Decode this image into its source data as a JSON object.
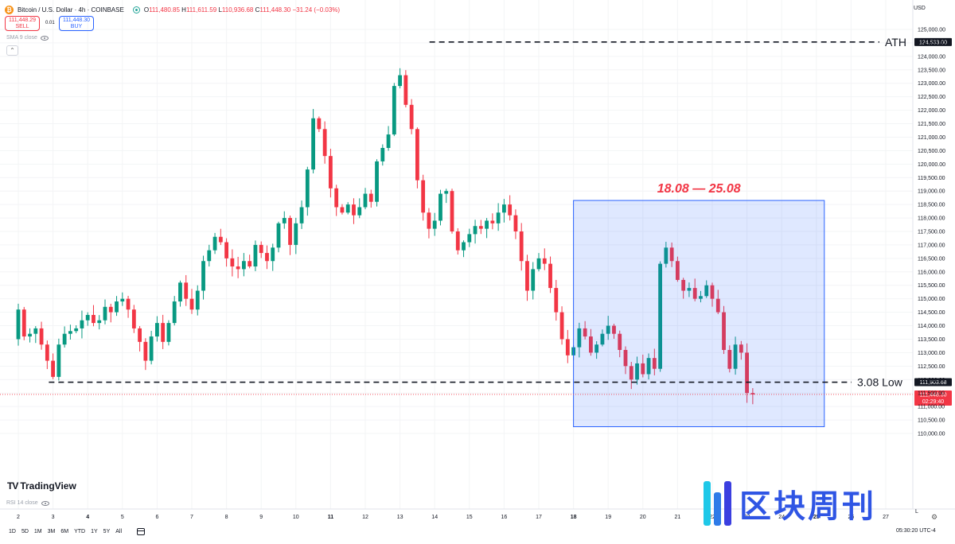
{
  "header": {
    "symbol": "Bitcoin / U.S. Dollar · 4h · COINBASE",
    "open_label": "O",
    "open": "111,480.85",
    "high_label": "H",
    "high": "111,611.59",
    "low_label": "L",
    "low": "110,936.68",
    "close_label": "C",
    "close": "111,448.30",
    "change": "−31.24 (−0.03%)"
  },
  "trade": {
    "sell_price": "111,448.29",
    "sell_label": "SELL",
    "spread": "0.01",
    "buy_price": "111,448.30",
    "buy_label": "BUY"
  },
  "indicators": {
    "sma": "SMA 9 close",
    "rsi": "RSI 14 close"
  },
  "currency": "USD",
  "brand": {
    "name": "TradingView",
    "mark": "TV",
    "watermark": "区块周刊"
  },
  "timeframes": [
    "1D",
    "5D",
    "1M",
    "3M",
    "6M",
    "YTD",
    "1Y",
    "5Y",
    "All"
  ],
  "clock": "05:30:20 UTC-4",
  "scale_toggle": "L",
  "colors": {
    "up": "#089981",
    "down": "#f23645",
    "highlight": "#2962ff",
    "annotation": "#f23645"
  },
  "chart_data": {
    "type": "candlestick",
    "timeframe": "4h",
    "ylim": [
      109000,
      125500
    ],
    "y_ticks": [
      110000,
      110500,
      111000,
      111500,
      112000,
      112500,
      113000,
      113500,
      114000,
      114500,
      115000,
      115500,
      116000,
      116500,
      117000,
      117500,
      118000,
      118500,
      119000,
      119500,
      120000,
      120500,
      121000,
      121500,
      122000,
      122500,
      123000,
      123500,
      124000,
      124500,
      125000
    ],
    "x_labels": [
      {
        "label": "2",
        "day": 2,
        "bold": false
      },
      {
        "label": "3",
        "day": 3,
        "bold": false
      },
      {
        "label": "4",
        "day": 4,
        "bold": true
      },
      {
        "label": "5",
        "day": 5,
        "bold": false
      },
      {
        "label": "6",
        "day": 6,
        "bold": false
      },
      {
        "label": "7",
        "day": 7,
        "bold": false
      },
      {
        "label": "8",
        "day": 8,
        "bold": false
      },
      {
        "label": "9",
        "day": 9,
        "bold": false
      },
      {
        "label": "10",
        "day": 10,
        "bold": false
      },
      {
        "label": "11",
        "day": 11,
        "bold": true
      },
      {
        "label": "12",
        "day": 12,
        "bold": false
      },
      {
        "label": "13",
        "day": 13,
        "bold": false
      },
      {
        "label": "14",
        "day": 14,
        "bold": false
      },
      {
        "label": "15",
        "day": 15,
        "bold": false
      },
      {
        "label": "16",
        "day": 16,
        "bold": false
      },
      {
        "label": "17",
        "day": 17,
        "bold": false
      },
      {
        "label": "18",
        "day": 18,
        "bold": true
      },
      {
        "label": "19",
        "day": 19,
        "bold": false
      },
      {
        "label": "20",
        "day": 20,
        "bold": false
      },
      {
        "label": "21",
        "day": 21,
        "bold": false
      },
      {
        "label": "22",
        "day": 22,
        "bold": false
      },
      {
        "label": "23",
        "day": 23,
        "bold": false
      },
      {
        "label": "24",
        "day": 24,
        "bold": false
      },
      {
        "label": "25",
        "day": 25,
        "bold": true
      },
      {
        "label": "26",
        "day": 26,
        "bold": false
      },
      {
        "label": "27",
        "day": 27,
        "bold": false
      }
    ],
    "closes": [
      114600,
      113600,
      113700,
      113900,
      113300,
      112700,
      112100,
      113300,
      113700,
      113800,
      113900,
      114200,
      114400,
      114100,
      114200,
      114700,
      114500,
      114900,
      115000,
      114600,
      113900,
      113400,
      112700,
      113600,
      114100,
      113400,
      114100,
      114900,
      115600,
      115000,
      114600,
      115300,
      116400,
      116800,
      117300,
      117100,
      116500,
      116200,
      116100,
      116400,
      116200,
      117000,
      116700,
      116400,
      116900,
      117800,
      118000,
      117000,
      117800,
      118400,
      119800,
      121700,
      121300,
      120300,
      119100,
      118400,
      118200,
      118500,
      118100,
      118400,
      118900,
      118600,
      120100,
      120600,
      121100,
      122900,
      123300,
      122200,
      121300,
      119400,
      118200,
      117600,
      117900,
      118900,
      119000,
      117500,
      116800,
      117100,
      117400,
      117700,
      117600,
      117900,
      117800,
      118200,
      118500,
      118100,
      117500,
      116400,
      115300,
      116100,
      116500,
      116300,
      115400,
      114500,
      113500,
      112900,
      113200,
      113900,
      113600,
      113000,
      113300,
      113700,
      114000,
      113700,
      113100,
      112500,
      112000,
      112600,
      112200,
      112800,
      112400,
      116300,
      116900,
      116400,
      115700,
      115300,
      115400,
      115000,
      115100,
      115500,
      115000,
      114500,
      113100,
      112400,
      113300,
      113000,
      111500,
      111448
    ],
    "ath": {
      "value": 124533,
      "label": "ATH",
      "price_label": "124,533.00"
    },
    "support": {
      "value": 111903.68,
      "label": "3.08 Low",
      "price_label": "111,903.68"
    },
    "last_price": {
      "value": 111448.3,
      "price_label": "111,448.30",
      "countdown": "02:29:40"
    },
    "highlight": {
      "label": "18.08 — 25.08",
      "from_day": 18,
      "to_day": 25,
      "top": 118650,
      "bottom": 110250
    }
  }
}
